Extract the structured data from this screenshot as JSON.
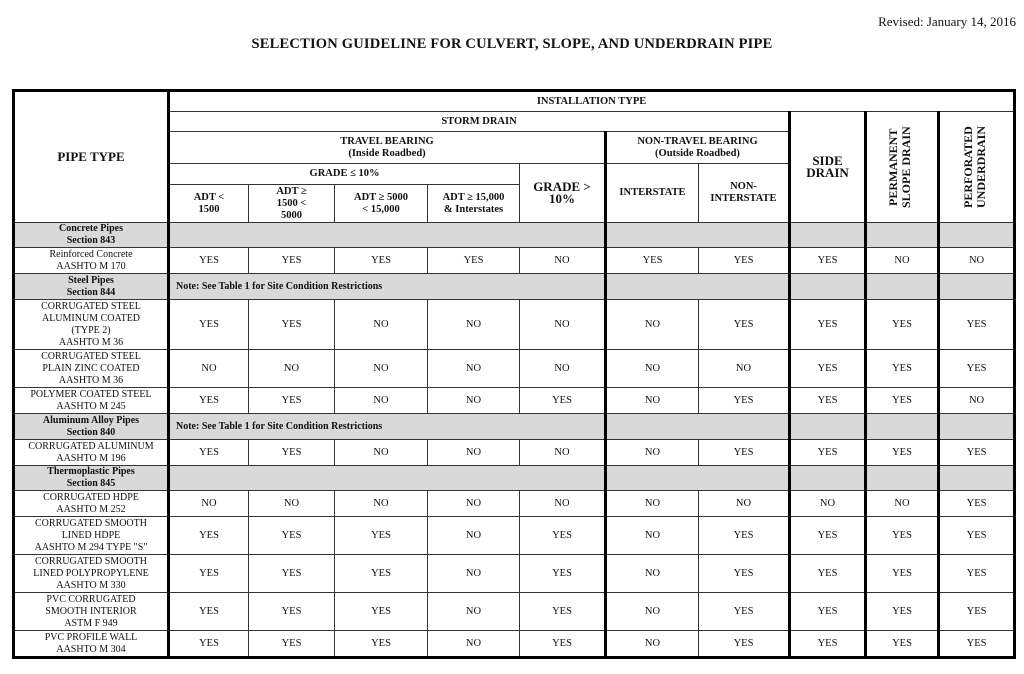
{
  "revised": "Revised: January 14, 2016",
  "title": "SELECTION GUIDELINE FOR CULVERT, SLOPE, AND UNDERDRAIN PIPE",
  "header": {
    "pipe_type": "PIPE TYPE",
    "installation_type": "INSTALLATION TYPE",
    "storm_drain": "STORM DRAIN",
    "travel_bearing": "TRAVEL BEARING",
    "travel_bearing_sub": "(Inside Roadbed)",
    "non_travel_bearing": "NON-TRAVEL BEARING",
    "non_travel_bearing_sub": "(Outside Roadbed)",
    "grade_le_10": "GRADE ≤ 10%",
    "grade_gt_10": "GRADE > 10%",
    "adt": [
      "ADT < 1500",
      "ADT ≥ 1500 < 5000",
      "ADT ≥ 5000 < 15,000",
      "ADT ≥ 15,000 & Interstates"
    ],
    "interstate": "INTERSTATE",
    "non_interstate": "NON-INTERSTATE",
    "side_drain": "SIDE DRAIN",
    "permanent_slope_drain": "PERMANENT SLOPE DRAIN",
    "perforated_underdrain": "PERFORATED UNDERDRAIN"
  },
  "rows": [
    {
      "section": "Concrete Pipes\nSection 843",
      "note": ""
    },
    {
      "pipe": "Reinforced Concrete\nAASHTO M 170",
      "values": [
        "YES",
        "YES",
        "YES",
        "YES",
        "NO",
        "YES",
        "YES",
        "YES",
        "NO",
        "NO"
      ]
    },
    {
      "section": "Steel Pipes\nSection 844",
      "note": "Note: See Table 1 for Site Condition Restrictions"
    },
    {
      "pipe": "CORRUGATED STEEL\nALUMINUM COATED\n(TYPE 2)\nAASHTO M 36",
      "values": [
        "YES",
        "YES",
        "NO",
        "NO",
        "NO",
        "NO",
        "YES",
        "YES",
        "YES",
        "YES"
      ]
    },
    {
      "pipe": "CORRUGATED STEEL\nPLAIN ZINC COATED\nAASHTO M 36",
      "values": [
        "NO",
        "NO",
        "NO",
        "NO",
        "NO",
        "NO",
        "NO",
        "YES",
        "YES",
        "YES"
      ]
    },
    {
      "pipe": "POLYMER COATED STEEL\nAASHTO M 245",
      "values": [
        "YES",
        "YES",
        "NO",
        "NO",
        "YES",
        "NO",
        "YES",
        "YES",
        "YES",
        "NO"
      ]
    },
    {
      "section": "Aluminum Alloy Pipes\nSection 840",
      "note": "Note: See Table 1 for Site Condition Restrictions"
    },
    {
      "pipe": "CORRUGATED ALUMINUM\nAASHTO M 196",
      "values": [
        "YES",
        "YES",
        "NO",
        "NO",
        "NO",
        "NO",
        "YES",
        "YES",
        "YES",
        "YES"
      ]
    },
    {
      "section": "Thermoplastic Pipes\nSection 845",
      "note": ""
    },
    {
      "pipe": "CORRUGATED HDPE\nAASHTO M 252",
      "values": [
        "NO",
        "NO",
        "NO",
        "NO",
        "NO",
        "NO",
        "NO",
        "NO",
        "NO",
        "YES"
      ]
    },
    {
      "pipe": "CORRUGATED SMOOTH\nLINED HDPE\nAASHTO M 294 TYPE \"S\"",
      "values": [
        "YES",
        "YES",
        "YES",
        "NO",
        "YES",
        "NO",
        "YES",
        "YES",
        "YES",
        "YES"
      ]
    },
    {
      "pipe": "CORRUGATED SMOOTH\nLINED POLYPROPYLENE\nAASHTO M 330",
      "values": [
        "YES",
        "YES",
        "YES",
        "NO",
        "YES",
        "NO",
        "YES",
        "YES",
        "YES",
        "YES"
      ]
    },
    {
      "pipe": "PVC CORRUGATED\nSMOOTH INTERIOR\nASTM F 949",
      "values": [
        "YES",
        "YES",
        "YES",
        "NO",
        "YES",
        "NO",
        "YES",
        "YES",
        "YES",
        "YES"
      ]
    },
    {
      "pipe": "PVC PROFILE WALL\nAASHTO M 304",
      "values": [
        "YES",
        "YES",
        "YES",
        "NO",
        "YES",
        "NO",
        "YES",
        "YES",
        "YES",
        "YES"
      ]
    }
  ],
  "colors": {
    "section_fill": "#d9d9d9",
    "border": "#000000"
  }
}
